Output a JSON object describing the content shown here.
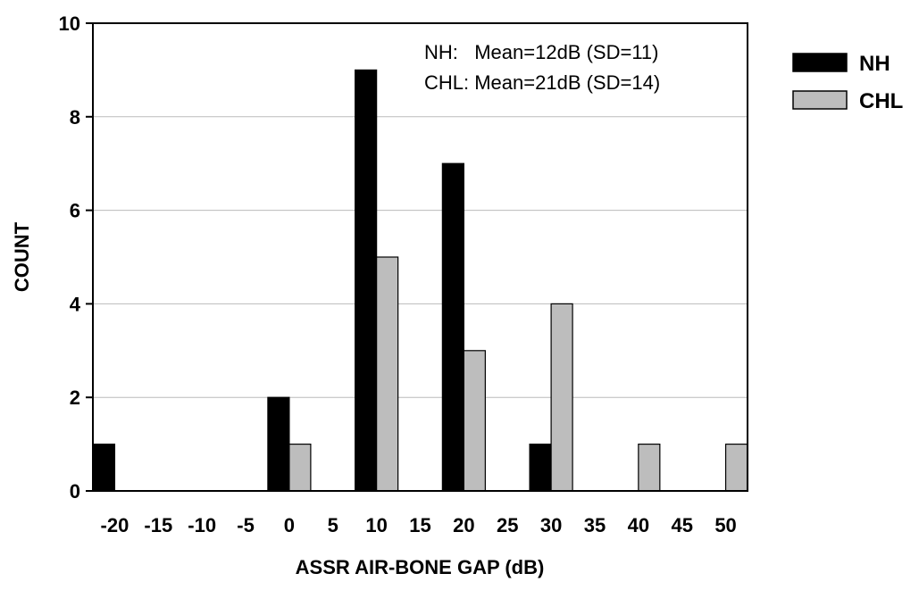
{
  "chart_data": {
    "type": "bar",
    "title": "",
    "xlabel": "ASSR AIR-BONE GAP (dB)",
    "ylabel": "COUNT",
    "categories": [
      "-20",
      "-15",
      "-10",
      "-5",
      "0",
      "5",
      "10",
      "15",
      "20",
      "25",
      "30",
      "35",
      "40",
      "45",
      "50"
    ],
    "series": [
      {
        "name": "NH",
        "color": "#000000",
        "values": [
          1,
          0,
          0,
          0,
          2,
          0,
          9,
          0,
          7,
          0,
          1,
          0,
          0,
          0,
          0
        ]
      },
      {
        "name": "CHL",
        "color": "#bdbdbd",
        "values": [
          0,
          0,
          0,
          0,
          1,
          0,
          5,
          0,
          3,
          0,
          4,
          0,
          1,
          0,
          1
        ]
      }
    ],
    "ylim": [
      0,
      10
    ],
    "yticks": [
      0,
      2,
      4,
      6,
      8,
      10
    ],
    "grid": true,
    "legend_position": "outside-top-right",
    "annotations": [
      "NH:   Mean=12dB (SD=11)",
      "CHL: Mean=21dB (SD=14)"
    ]
  }
}
